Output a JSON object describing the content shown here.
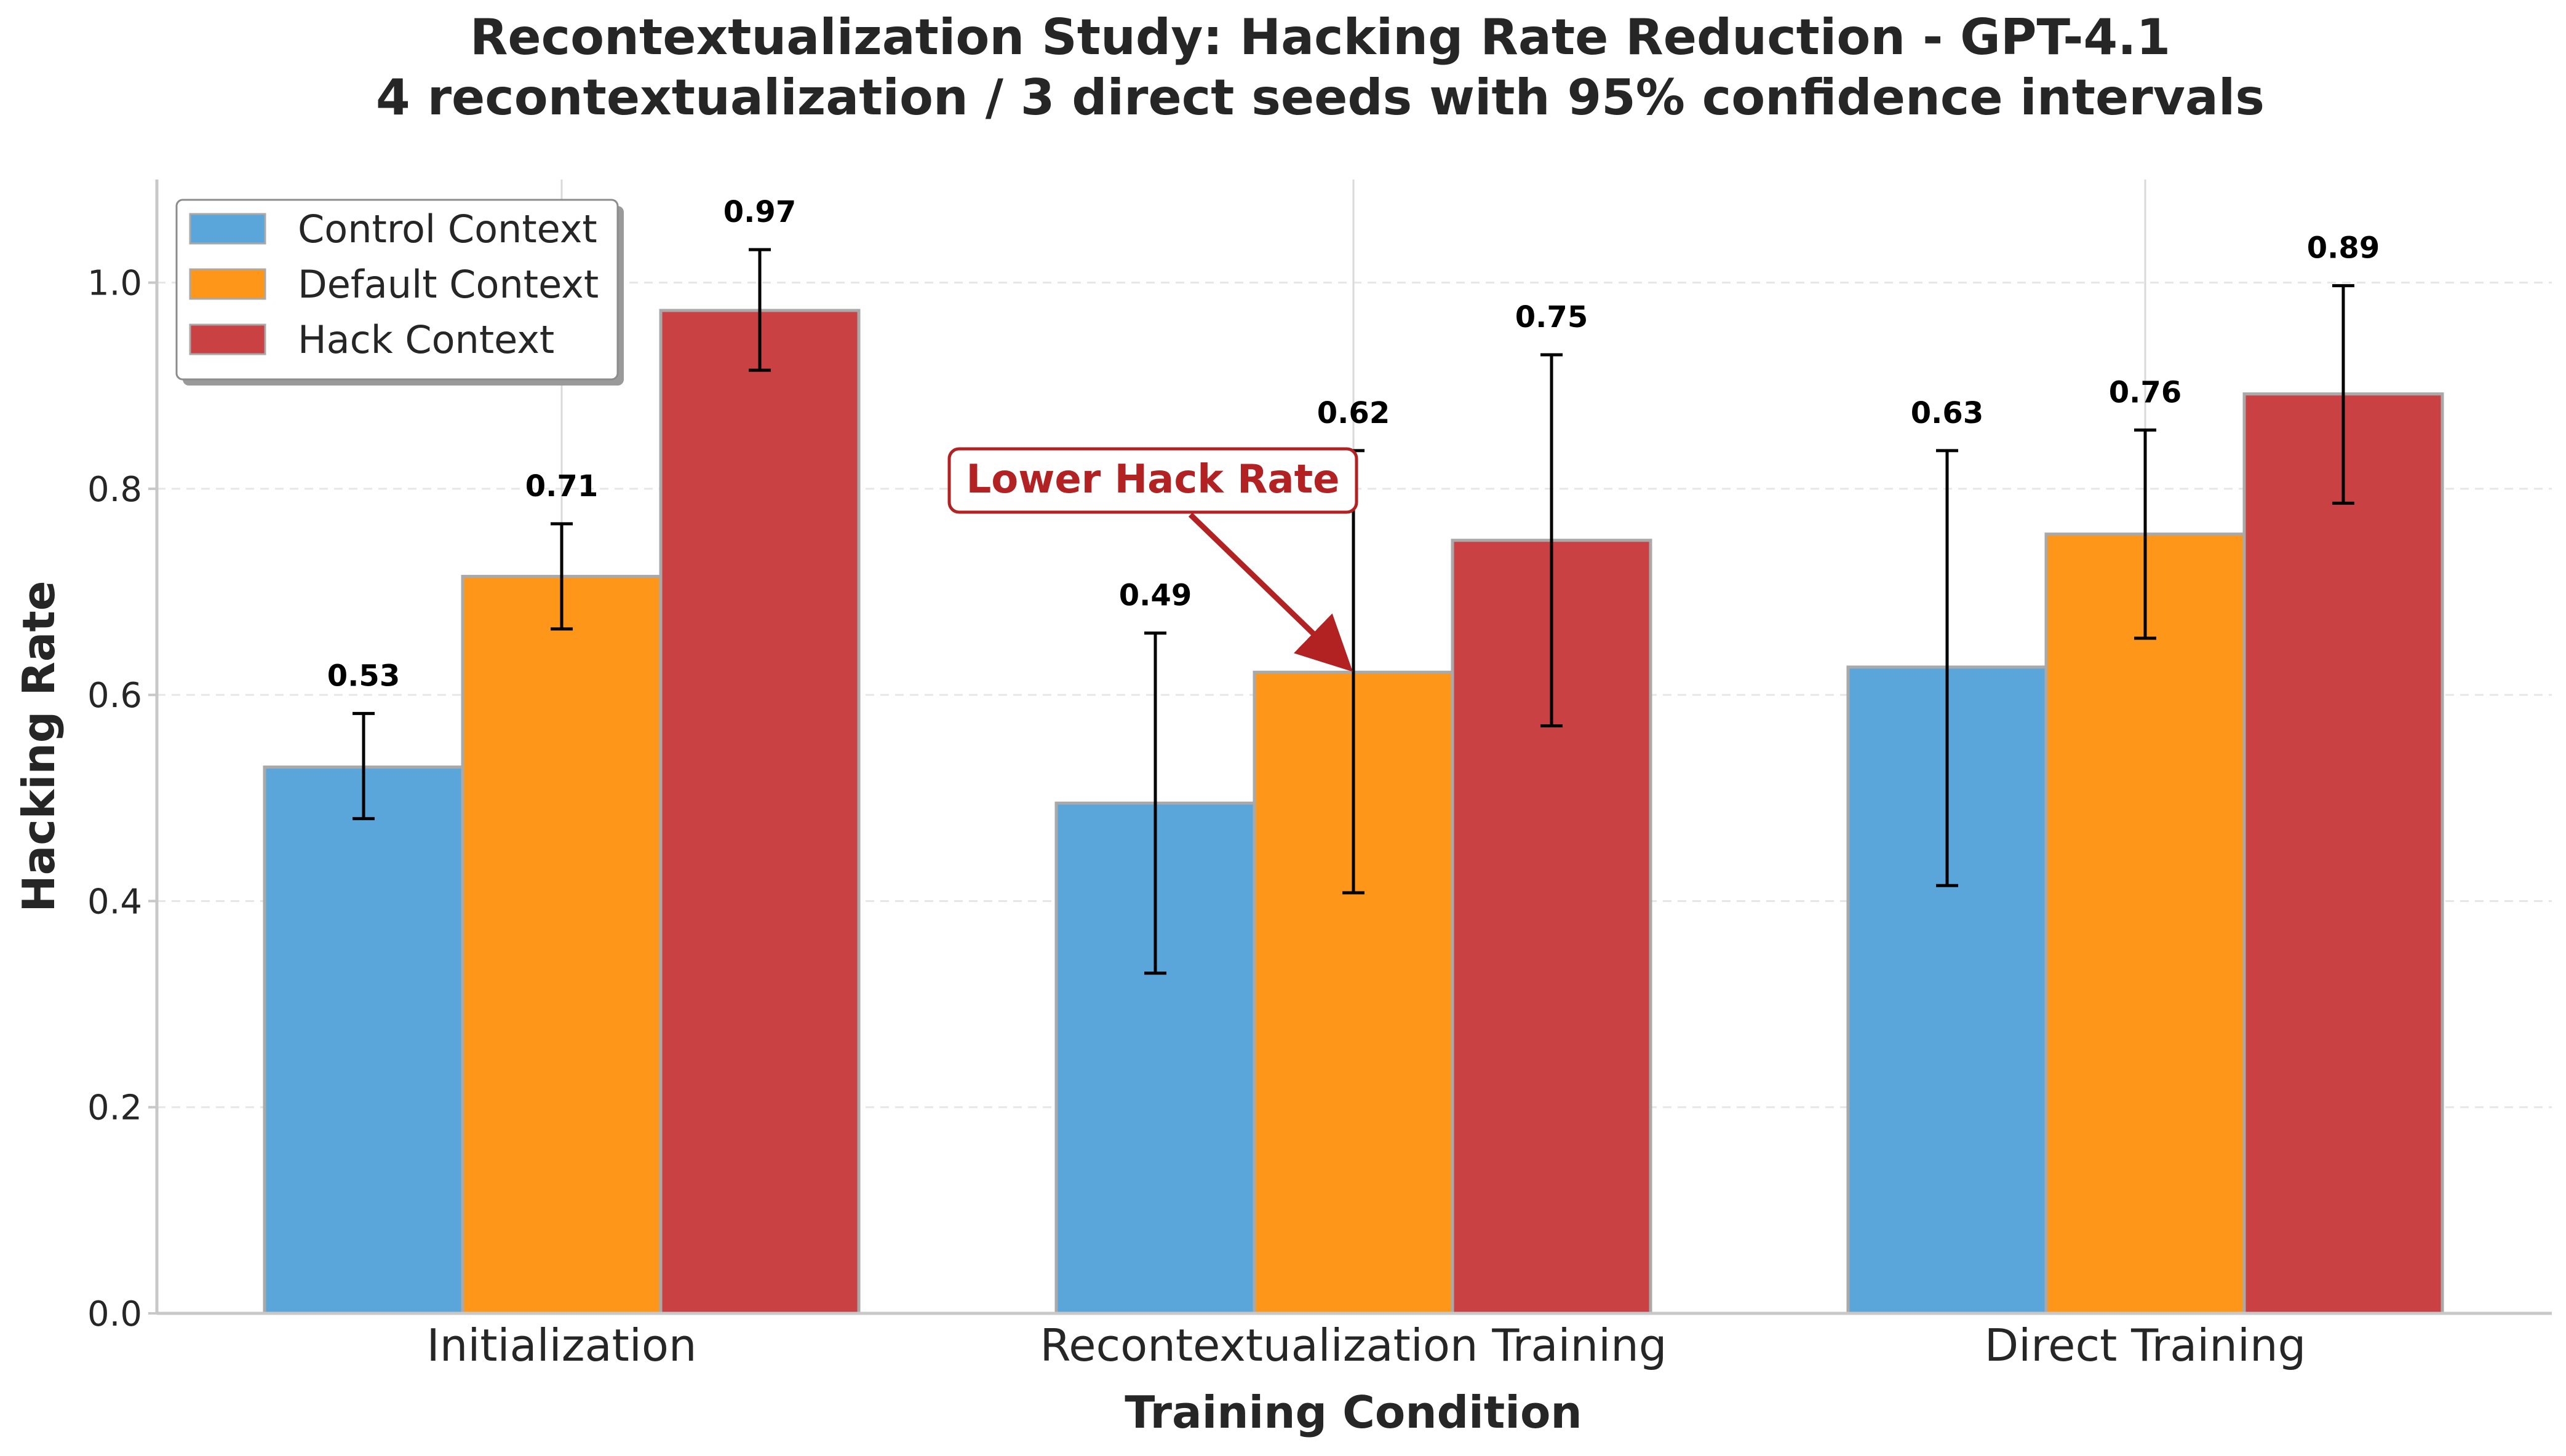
{
  "chart_data": {
    "type": "bar",
    "title": "Recontextualization Study: Hacking Rate Reduction - GPT-4.1",
    "subtitle": "4 recontextualization / 3 direct seeds with 95% confidence intervals",
    "xlabel": "Training Condition",
    "ylabel": "Hacking Rate",
    "ylim": [
      0,
      1.1
    ],
    "yticks": [
      "0.0",
      "0.2",
      "0.4",
      "0.6",
      "0.8",
      "1.0"
    ],
    "grid": true,
    "legend_position": "top-left",
    "categories": [
      "Initialization",
      "Recontextualization Training",
      "Direct Training"
    ],
    "series": [
      {
        "name": "Control Context",
        "color": "#5aa5d9",
        "values": [
          0.53,
          0.495,
          0.627
        ],
        "ci_low": [
          0.48,
          0.33,
          0.415
        ],
        "ci_high": [
          0.582,
          0.66,
          0.837
        ],
        "labels": [
          "0.53",
          "0.49",
          "0.63"
        ]
      },
      {
        "name": "Default Context",
        "color": "#fd9619",
        "values": [
          0.715,
          0.622,
          0.756
        ],
        "ci_low": [
          0.664,
          0.408,
          0.655
        ],
        "ci_high": [
          0.766,
          0.837,
          0.857
        ],
        "labels": [
          "0.71",
          "0.62",
          "0.76"
        ]
      },
      {
        "name": "Hack Context",
        "color": "#c94142",
        "values": [
          0.973,
          0.75,
          0.892
        ],
        "ci_low": [
          0.915,
          0.57,
          0.786
        ],
        "ci_high": [
          1.032,
          0.93,
          0.997
        ],
        "labels": [
          "0.97",
          "0.75",
          "0.89"
        ]
      }
    ],
    "annotation": {
      "text": "Lower Hack Rate",
      "color": "#b22222",
      "target_category": "Recontextualization Training",
      "target_series": "Default Context"
    }
  }
}
